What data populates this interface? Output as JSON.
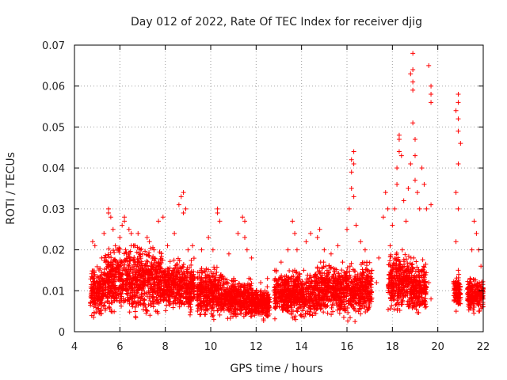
{
  "chart_data": {
    "type": "scatter",
    "title": "Day 012 of 2022, Rate Of TEC Index for receiver djig",
    "xlabel": "GPS time / hours",
    "ylabel": "ROTI / TECUs",
    "xlim": [
      4,
      22
    ],
    "ylim": [
      0,
      0.07
    ],
    "xticks": [
      4,
      6,
      8,
      10,
      12,
      14,
      16,
      18,
      20,
      22
    ],
    "yticks": [
      0,
      0.01,
      0.02,
      0.03,
      0.04,
      0.05,
      0.06,
      0.07
    ],
    "xtick_labels": [
      "4",
      "6",
      "8",
      "10",
      "12",
      "14",
      "16",
      "18",
      "20",
      "22"
    ],
    "ytick_labels": [
      "0",
      "0.01",
      "0.02",
      "0.03",
      "0.04",
      "0.05",
      "0.06",
      "0.07"
    ],
    "grid": true,
    "marker": "+",
    "color": "#ff0000",
    "series": [
      {
        "name": "ROTI",
        "points": [
          [
            4.8,
            0.022
          ],
          [
            4.9,
            0.021
          ],
          [
            5.0,
            0.012
          ],
          [
            5.2,
            0.018
          ],
          [
            5.3,
            0.024
          ],
          [
            5.5,
            0.029
          ],
          [
            5.5,
            0.03
          ],
          [
            5.6,
            0.028
          ],
          [
            5.7,
            0.025
          ],
          [
            5.8,
            0.021
          ],
          [
            6.0,
            0.023
          ],
          [
            6.1,
            0.026
          ],
          [
            6.2,
            0.028
          ],
          [
            6.2,
            0.027
          ],
          [
            6.4,
            0.025
          ],
          [
            6.5,
            0.024
          ],
          [
            6.6,
            0.021
          ],
          [
            6.8,
            0.024
          ],
          [
            6.9,
            0.02
          ],
          [
            7.0,
            0.019
          ],
          [
            7.2,
            0.023
          ],
          [
            7.3,
            0.022
          ],
          [
            7.5,
            0.02
          ],
          [
            7.7,
            0.027
          ],
          [
            7.9,
            0.028
          ],
          [
            8.1,
            0.021
          ],
          [
            8.4,
            0.024
          ],
          [
            8.6,
            0.031
          ],
          [
            8.7,
            0.033
          ],
          [
            8.8,
            0.034
          ],
          [
            8.8,
            0.029
          ],
          [
            8.9,
            0.03
          ],
          [
            9.0,
            0.02
          ],
          [
            9.2,
            0.021
          ],
          [
            9.6,
            0.02
          ],
          [
            9.9,
            0.023
          ],
          [
            10.1,
            0.02
          ],
          [
            10.3,
            0.03
          ],
          [
            10.3,
            0.029
          ],
          [
            10.4,
            0.027
          ],
          [
            10.8,
            0.019
          ],
          [
            11.2,
            0.024
          ],
          [
            11.4,
            0.028
          ],
          [
            11.5,
            0.027
          ],
          [
            11.5,
            0.023
          ],
          [
            11.6,
            0.02
          ],
          [
            11.8,
            0.018
          ],
          [
            12.2,
            0.012
          ],
          [
            12.5,
            0.013
          ],
          [
            13.1,
            0.017
          ],
          [
            13.4,
            0.02
          ],
          [
            13.6,
            0.027
          ],
          [
            13.7,
            0.024
          ],
          [
            13.8,
            0.02
          ],
          [
            14.2,
            0.022
          ],
          [
            14.4,
            0.024
          ],
          [
            14.7,
            0.023
          ],
          [
            14.8,
            0.025
          ],
          [
            15.0,
            0.02
          ],
          [
            15.3,
            0.019
          ],
          [
            15.6,
            0.021
          ],
          [
            16.0,
            0.025
          ],
          [
            16.1,
            0.03
          ],
          [
            16.2,
            0.035
          ],
          [
            16.2,
            0.039
          ],
          [
            16.2,
            0.042
          ],
          [
            16.3,
            0.044
          ],
          [
            16.3,
            0.041
          ],
          [
            16.3,
            0.033
          ],
          [
            16.4,
            0.026
          ],
          [
            16.6,
            0.022
          ],
          [
            16.8,
            0.02
          ],
          [
            17.1,
            0.015
          ],
          [
            17.3,
            0.012
          ],
          [
            17.4,
            0.018
          ],
          [
            17.6,
            0.028
          ],
          [
            17.7,
            0.034
          ],
          [
            17.8,
            0.03
          ],
          [
            17.9,
            0.021
          ],
          [
            18.0,
            0.026
          ],
          [
            18.1,
            0.03
          ],
          [
            18.2,
            0.036
          ],
          [
            18.2,
            0.04
          ],
          [
            18.3,
            0.044
          ],
          [
            18.3,
            0.047
          ],
          [
            18.3,
            0.048
          ],
          [
            18.4,
            0.043
          ],
          [
            18.5,
            0.032
          ],
          [
            18.6,
            0.027
          ],
          [
            18.7,
            0.035
          ],
          [
            18.8,
            0.041
          ],
          [
            18.8,
            0.063
          ],
          [
            18.9,
            0.068
          ],
          [
            18.9,
            0.064
          ],
          [
            18.9,
            0.061
          ],
          [
            18.9,
            0.059
          ],
          [
            18.9,
            0.051
          ],
          [
            19.0,
            0.047
          ],
          [
            19.0,
            0.043
          ],
          [
            19.0,
            0.037
          ],
          [
            19.1,
            0.034
          ],
          [
            19.2,
            0.03
          ],
          [
            19.3,
            0.04
          ],
          [
            19.4,
            0.036
          ],
          [
            19.5,
            0.03
          ],
          [
            19.6,
            0.065
          ],
          [
            19.7,
            0.06
          ],
          [
            19.7,
            0.058
          ],
          [
            19.7,
            0.056
          ],
          [
            19.7,
            0.031
          ],
          [
            19.6,
            0.012
          ],
          [
            19.7,
            0.008
          ],
          [
            20.8,
            0.054
          ],
          [
            20.9,
            0.058
          ],
          [
            20.9,
            0.056
          ],
          [
            20.9,
            0.052
          ],
          [
            20.9,
            0.049
          ],
          [
            21.0,
            0.046
          ],
          [
            20.9,
            0.041
          ],
          [
            20.8,
            0.034
          ],
          [
            20.9,
            0.03
          ],
          [
            20.8,
            0.022
          ],
          [
            20.9,
            0.015
          ],
          [
            20.9,
            0.007
          ],
          [
            21.4,
            0.012
          ],
          [
            21.5,
            0.02
          ],
          [
            21.6,
            0.027
          ],
          [
            21.7,
            0.024
          ],
          [
            21.8,
            0.02
          ],
          [
            21.9,
            0.016
          ],
          [
            21.7,
            0.008
          ],
          [
            21.8,
            0.005
          ]
        ]
      }
    ],
    "dense_clusters": [
      {
        "x": [
          4.7,
          5.3
        ],
        "y": [
          0.002,
          0.016
        ]
      },
      {
        "x": [
          5.3,
          7.9
        ],
        "y": [
          0.002,
          0.021
        ]
      },
      {
        "x": [
          7.9,
          9.3
        ],
        "y": [
          0.003,
          0.018
        ]
      },
      {
        "x": [
          9.4,
          10.6
        ],
        "y": [
          0.002,
          0.016
        ]
      },
      {
        "x": [
          10.6,
          11.8
        ],
        "y": [
          0.002,
          0.013
        ]
      },
      {
        "x": [
          11.8,
          12.6
        ],
        "y": [
          0.002,
          0.011
        ]
      },
      {
        "x": [
          12.8,
          14.6
        ],
        "y": [
          0.002,
          0.015
        ]
      },
      {
        "x": [
          14.6,
          17.1
        ],
        "y": [
          0.002,
          0.017
        ]
      },
      {
        "x": [
          17.8,
          18.9
        ],
        "y": [
          0.003,
          0.02
        ]
      },
      {
        "x": [
          18.9,
          19.5
        ],
        "y": [
          0.003,
          0.018
        ]
      },
      {
        "x": [
          20.7,
          21.0
        ],
        "y": [
          0.004,
          0.014
        ]
      },
      {
        "x": [
          21.3,
          22.0
        ],
        "y": [
          0.004,
          0.013
        ]
      }
    ]
  }
}
